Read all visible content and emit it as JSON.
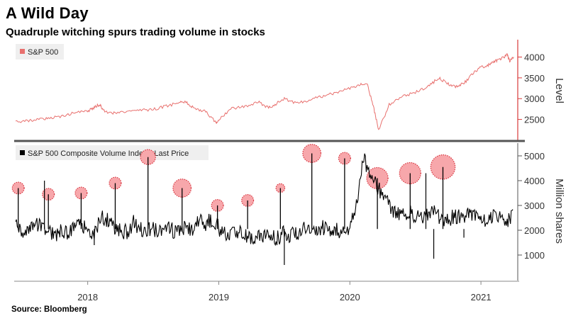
{
  "header": {
    "title": "A Wild Day",
    "subtitle": "Quadruple witching spurs trading volume in stocks"
  },
  "footer": {
    "source": "Source: Bloomberg"
  },
  "colors": {
    "spx_line": "#e8706e",
    "volume_line": "#000000",
    "bubble_fill": "#f7a7ab",
    "bubble_stroke": "#d8343e",
    "divider": "#555555",
    "axis": "#d83a3a"
  },
  "chart_data": [
    {
      "type": "line",
      "title": "",
      "legend": [
        "S&P 500"
      ],
      "ylabel": "Level",
      "ylim": [
        2050,
        4350
      ],
      "yticks": [
        2500,
        3000,
        3500,
        4000
      ],
      "xlim": [
        2017.45,
        2021.27
      ],
      "series": [
        {
          "name": "S&P 500",
          "x": [
            2017.45,
            2017.55,
            2017.62,
            2017.7,
            2017.8,
            2017.9,
            2018.0,
            2018.05,
            2018.09,
            2018.13,
            2018.2,
            2018.3,
            2018.4,
            2018.5,
            2018.6,
            2018.7,
            2018.75,
            2018.82,
            2018.9,
            2018.98,
            2019.0,
            2019.1,
            2019.2,
            2019.3,
            2019.38,
            2019.45,
            2019.5,
            2019.6,
            2019.7,
            2019.8,
            2019.9,
            2020.0,
            2020.08,
            2020.13,
            2020.18,
            2020.22,
            2020.3,
            2020.4,
            2020.5,
            2020.6,
            2020.68,
            2020.75,
            2020.82,
            2020.88,
            2020.95,
            2021.0,
            2021.05,
            2021.1,
            2021.15,
            2021.2,
            2021.22,
            2021.25
          ],
          "values": [
            2440,
            2470,
            2500,
            2520,
            2575,
            2660,
            2700,
            2790,
            2860,
            2680,
            2650,
            2680,
            2720,
            2740,
            2820,
            2900,
            2920,
            2740,
            2700,
            2420,
            2500,
            2760,
            2810,
            2920,
            2780,
            2900,
            3000,
            2880,
            2980,
            3060,
            3150,
            3250,
            3350,
            3380,
            2800,
            2250,
            2850,
            3050,
            3150,
            3300,
            3500,
            3350,
            3280,
            3400,
            3650,
            3750,
            3800,
            3900,
            3950,
            4050,
            3900,
            4000
          ]
        }
      ]
    },
    {
      "type": "line",
      "title": "",
      "legend": [
        "S&P 500 Composite Volume Index - Last Price"
      ],
      "ylabel": "Million shares",
      "ylim": [
        0,
        5400
      ],
      "yticks": [
        1000,
        2000,
        3000,
        4000,
        5000
      ],
      "xlim": [
        2017.45,
        2021.27
      ],
      "xticks": [
        {
          "value": 2018.0,
          "label": "2018"
        },
        {
          "value": 2019.0,
          "label": "2019"
        },
        {
          "value": 2020.0,
          "label": "2020"
        },
        {
          "value": 2021.0,
          "label": "2021"
        }
      ],
      "series": [
        {
          "name": "S&P 500 Composite Volume Index - Last Price",
          "x": [
            2017.45,
            2017.5,
            2017.55,
            2017.6,
            2017.65,
            2017.7,
            2017.75,
            2017.8,
            2017.85,
            2017.9,
            2017.95,
            2018.0,
            2018.05,
            2018.1,
            2018.15,
            2018.2,
            2018.25,
            2018.3,
            2018.35,
            2018.4,
            2018.45,
            2018.5,
            2018.55,
            2018.6,
            2018.65,
            2018.7,
            2018.75,
            2018.8,
            2018.85,
            2018.9,
            2018.95,
            2019.0,
            2019.05,
            2019.1,
            2019.15,
            2019.2,
            2019.25,
            2019.3,
            2019.35,
            2019.4,
            2019.45,
            2019.5,
            2019.55,
            2019.6,
            2019.65,
            2019.7,
            2019.75,
            2019.8,
            2019.85,
            2019.9,
            2019.95,
            2020.0,
            2020.05,
            2020.1,
            2020.15,
            2020.2,
            2020.25,
            2020.3,
            2020.35,
            2020.4,
            2020.45,
            2020.5,
            2020.55,
            2020.6,
            2020.65,
            2020.7,
            2020.75,
            2020.8,
            2020.85,
            2020.9,
            2020.95,
            2021.0,
            2021.05,
            2021.1,
            2021.15,
            2021.2,
            2021.25
          ],
          "values": [
            2200,
            1900,
            2000,
            2300,
            2050,
            1950,
            1800,
            2000,
            1900,
            2100,
            2300,
            2000,
            1900,
            2500,
            2400,
            2100,
            2000,
            1900,
            2300,
            2100,
            2000,
            2050,
            1900,
            2050,
            2000,
            1950,
            2100,
            2000,
            2400,
            2200,
            2500,
            2100,
            1800,
            1900,
            1950,
            1800,
            1700,
            1750,
            1800,
            1750,
            1700,
            1900,
            1800,
            1900,
            2200,
            2000,
            1950,
            2100,
            2050,
            2000,
            2000,
            2000,
            3000,
            4900,
            4400,
            3800,
            3400,
            3000,
            2700,
            2600,
            2700,
            2600,
            2500,
            2600,
            2700,
            2500,
            2400,
            2600,
            2500,
            2700,
            2600,
            2400,
            2500,
            2600,
            2700,
            2300,
            2800
          ]
        }
      ],
      "spikes": [
        {
          "x": 2017.47,
          "value": 3700,
          "bubble": 3700,
          "size": 2
        },
        {
          "x": 2017.7,
          "value": 3450,
          "bubble": 3450,
          "size": 2
        },
        {
          "x": 2017.95,
          "value": 3500,
          "bubble": 3500,
          "size": 2
        },
        {
          "x": 2018.21,
          "value": 3900,
          "bubble": 3900,
          "size": 2
        },
        {
          "x": 2018.46,
          "value": 4950,
          "bubble": 4950,
          "size": 3
        },
        {
          "x": 2018.72,
          "value": 3700,
          "bubble": 3700,
          "size": 4
        },
        {
          "x": 2018.99,
          "value": 3000,
          "bubble": 3000,
          "size": 2
        },
        {
          "x": 2019.22,
          "value": 3200,
          "bubble": 3200,
          "size": 2
        },
        {
          "x": 2019.47,
          "value": 3700,
          "bubble": 3700,
          "size": 1
        },
        {
          "x": 2019.71,
          "value": 5100,
          "bubble": 5100,
          "size": 4
        },
        {
          "x": 2019.96,
          "value": 4900,
          "bubble": 4900,
          "size": 2
        },
        {
          "x": 2020.21,
          "value": 4100,
          "bubble": 4100,
          "size": 5
        },
        {
          "x": 2020.46,
          "value": 4300,
          "bubble": 4300,
          "size": 5
        },
        {
          "x": 2020.71,
          "value": 4550,
          "bubble": 4550,
          "size": 6
        }
      ],
      "extra_spikes": [
        {
          "x": 2017.67,
          "value": 4000
        },
        {
          "x": 2018.05,
          "value": 1400
        },
        {
          "x": 2019.5,
          "value": 600
        },
        {
          "x": 2020.64,
          "value": 850
        },
        {
          "x": 2020.58,
          "value": 4300
        },
        {
          "x": 2020.87,
          "value": 1700
        }
      ]
    }
  ]
}
